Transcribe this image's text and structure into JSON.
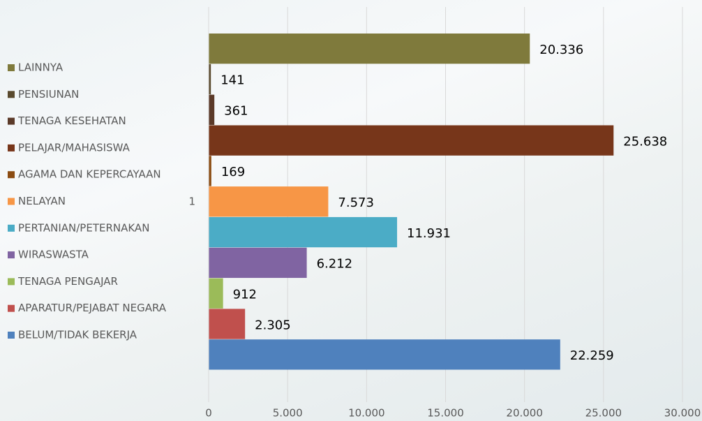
{
  "chart_data": {
    "type": "bar",
    "orientation": "horizontal",
    "categories": [
      "1"
    ],
    "series": [
      {
        "name": "LAINNYA",
        "color": "#7f7a3c",
        "values": [
          20336
        ],
        "value_labels": [
          "20.336"
        ]
      },
      {
        "name": "PENSIUNAN",
        "color": "#5a4a2e",
        "values": [
          141
        ],
        "value_labels": [
          "141"
        ]
      },
      {
        "name": "TENAGA KESEHATAN",
        "color": "#5b3a29",
        "values": [
          361
        ],
        "value_labels": [
          "361"
        ]
      },
      {
        "name": "PELAJAR/MAHASISWA",
        "color": "#77361a",
        "values": [
          25638
        ],
        "value_labels": [
          "25.638"
        ]
      },
      {
        "name": "AGAMA DAN KEPERCAYAAN",
        "color": "#8b4c12",
        "values": [
          169
        ],
        "value_labels": [
          "169"
        ]
      },
      {
        "name": "NELAYAN",
        "color": "#f79646",
        "values": [
          7573
        ],
        "value_labels": [
          "7.573"
        ]
      },
      {
        "name": "PERTANIAN/PETERNAKAN",
        "color": "#4bacc6",
        "values": [
          11931
        ],
        "value_labels": [
          "11.931"
        ]
      },
      {
        "name": "WIRASWASTA",
        "color": "#8064a2",
        "values": [
          6212
        ],
        "value_labels": [
          "6.212"
        ]
      },
      {
        "name": "TENAGA PENGAJAR",
        "color": "#9bbb59",
        "values": [
          912
        ],
        "value_labels": [
          "912"
        ]
      },
      {
        "name": "APARATUR/PEJABAT NEGARA",
        "color": "#c0504d",
        "values": [
          2305
        ],
        "value_labels": [
          "2.305"
        ]
      },
      {
        "name": "BELUM/TIDAK BEKERJA",
        "color": "#4f81bd",
        "values": [
          22259
        ],
        "value_labels": [
          "22.259"
        ]
      }
    ],
    "xlim": [
      0,
      30000
    ],
    "xticks": [
      0,
      {
        "value": 5000,
        "label": "5.000"
      },
      {
        "value": 10000,
        "label": "10.000"
      },
      {
        "value": 15000,
        "label": "15.000"
      },
      {
        "value": 20000,
        "label": "20.000"
      },
      {
        "value": 25000,
        "label": "25.000"
      },
      {
        "value": 30000,
        "label": "30.000"
      }
    ],
    "grid": true,
    "legend": "left"
  }
}
